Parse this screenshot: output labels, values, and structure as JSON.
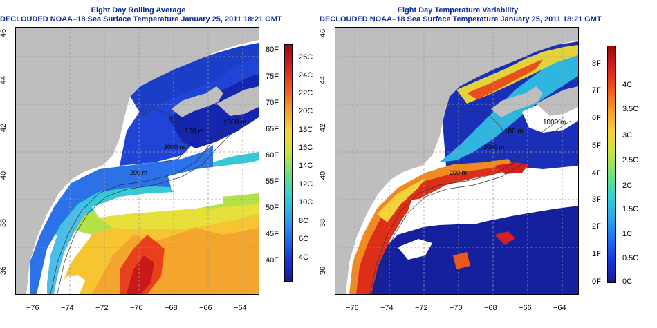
{
  "left_panel": {
    "title": "Eight Day Rolling Average",
    "subtitle": "DECLOUDED NOAA–18 Sea Surface Temperature January 25, 2011 18:21 GMT",
    "lat_ticks": [
      "36",
      "38",
      "40",
      "42",
      "44",
      "46"
    ],
    "lon_ticks": [
      "−76",
      "−74",
      "−72",
      "−70",
      "−68",
      "−66",
      "−64"
    ],
    "contour_labels": [
      "100 m",
      "1000 m",
      "200 m",
      "2000 m"
    ],
    "colorbar": {
      "celsius_labels": [
        "26C",
        "24C",
        "22C",
        "20C",
        "18C",
        "16C",
        "14C",
        "12C",
        "10C",
        "8C",
        "6C",
        "4C"
      ],
      "fahrenheit_labels": [
        "80F",
        "75F",
        "70F",
        "65F",
        "60F",
        "55F",
        "50F",
        "45F",
        "40F"
      ],
      "colors": [
        "#9b0a0a",
        "#d42020",
        "#f0561a",
        "#f79b2a",
        "#f6d33a",
        "#c8e53c",
        "#6ee07a",
        "#31d3d0",
        "#2aa7ef",
        "#1e6ff0",
        "#1533d8",
        "#1a1a90"
      ]
    }
  },
  "right_panel": {
    "title": "Eight Day Temperature Variability",
    "subtitle": "DECLOUDED NOAA–18 Sea Surface Temperature January 25, 2011 18:21 GMT",
    "lat_ticks": [
      "36",
      "38",
      "40",
      "42",
      "44",
      "46"
    ],
    "lon_ticks": [
      "−76",
      "−74",
      "−72",
      "−70",
      "−68",
      "−66",
      "−64"
    ],
    "contour_labels": [
      "100 m",
      "1000 m",
      "200 m",
      "2000 m"
    ],
    "colorbar": {
      "fahrenheit_labels": [
        "8F",
        "7F",
        "6F",
        "5F",
        "4F",
        "3F",
        "2F",
        "1F",
        "0F"
      ],
      "celsius_labels": [
        "4C",
        "3.5C",
        "3C",
        "2.5C",
        "2C",
        "1.5C",
        "1C",
        "0.5C",
        "0C"
      ],
      "colors": [
        "#9b0a0a",
        "#d42020",
        "#f0561a",
        "#f79b2a",
        "#f6d33a",
        "#c8e53c",
        "#6ee07a",
        "#31d3d0",
        "#2aa7ef",
        "#1e6ff0",
        "#1533d8",
        "#1a1a90"
      ]
    }
  }
}
